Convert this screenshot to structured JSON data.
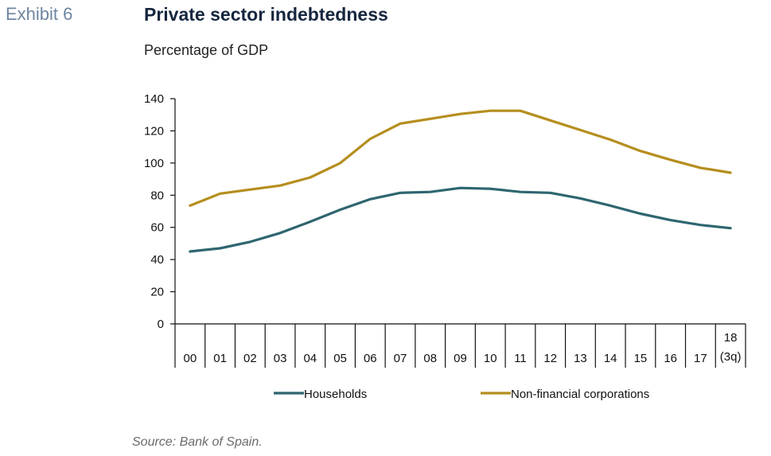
{
  "header": {
    "exhibit": "Exhibit 6",
    "title": "Private sector indebtedness",
    "subtitle": "Percentage of GDP"
  },
  "footer": {
    "source": "Source: Bank of Spain."
  },
  "chart_data": {
    "type": "line",
    "categories": [
      "00",
      "01",
      "02",
      "03",
      "04",
      "05",
      "06",
      "07",
      "08",
      "09",
      "10",
      "11",
      "12",
      "13",
      "14",
      "15",
      "16",
      "17",
      "18\n(3q)"
    ],
    "ylim": [
      0,
      140
    ],
    "yticks": [
      0,
      20,
      40,
      60,
      80,
      100,
      120,
      140
    ],
    "grid": false,
    "legend": "bottom",
    "series": [
      {
        "name": "Households",
        "color": "#2e6670",
        "values": [
          45,
          47,
          51,
          56.5,
          63.5,
          71,
          77.5,
          81.5,
          82,
          84.5,
          84,
          82,
          81.5,
          78,
          73.5,
          68.5,
          64.5,
          61.5,
          59.5
        ]
      },
      {
        "name": "Non-financial corporations",
        "color": "#b58e1e",
        "values": [
          73.5,
          81,
          83.5,
          86,
          91,
          100,
          115,
          124.5,
          127.5,
          130.5,
          132.5,
          132.5,
          126.5,
          120.5,
          114.5,
          107.5,
          102,
          97,
          94
        ]
      }
    ]
  }
}
